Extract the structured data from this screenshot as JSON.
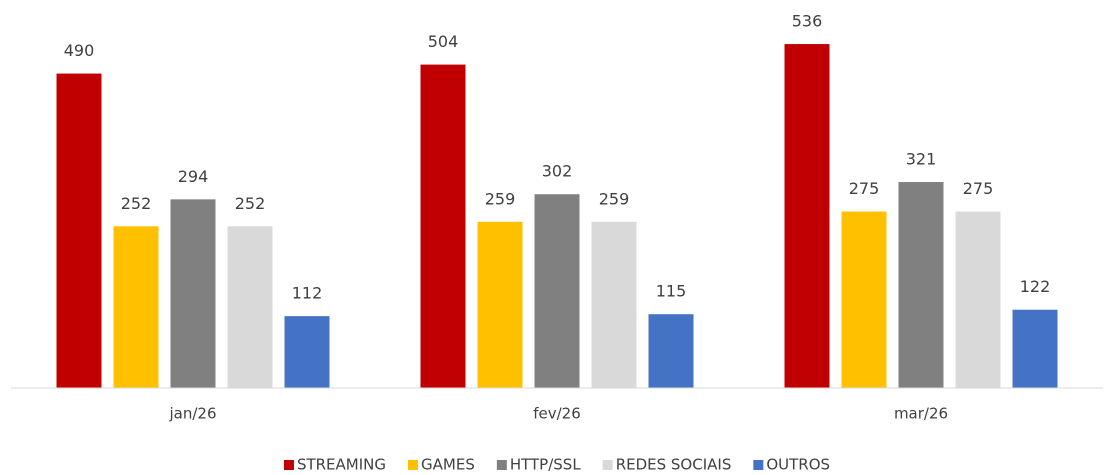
{
  "chart_data": {
    "type": "bar",
    "categories": [
      "jan/26",
      "fev/26",
      "mar/26"
    ],
    "series": [
      {
        "name": "STREAMING",
        "color": "#c00000",
        "values": [
          490,
          504,
          536
        ]
      },
      {
        "name": "GAMES",
        "color": "#ffc000",
        "values": [
          252,
          259,
          275
        ]
      },
      {
        "name": "HTTP/SSL",
        "color": "#808080",
        "values": [
          294,
          302,
          321
        ]
      },
      {
        "name": "REDES SOCIAIS",
        "color": "#d9d9d9",
        "values": [
          252,
          259,
          275
        ]
      },
      {
        "name": "OUTROS",
        "color": "#4472c4",
        "values": [
          112,
          115,
          122
        ]
      }
    ],
    "ylim": [
      0,
      600
    ],
    "legend": "bottom"
  }
}
